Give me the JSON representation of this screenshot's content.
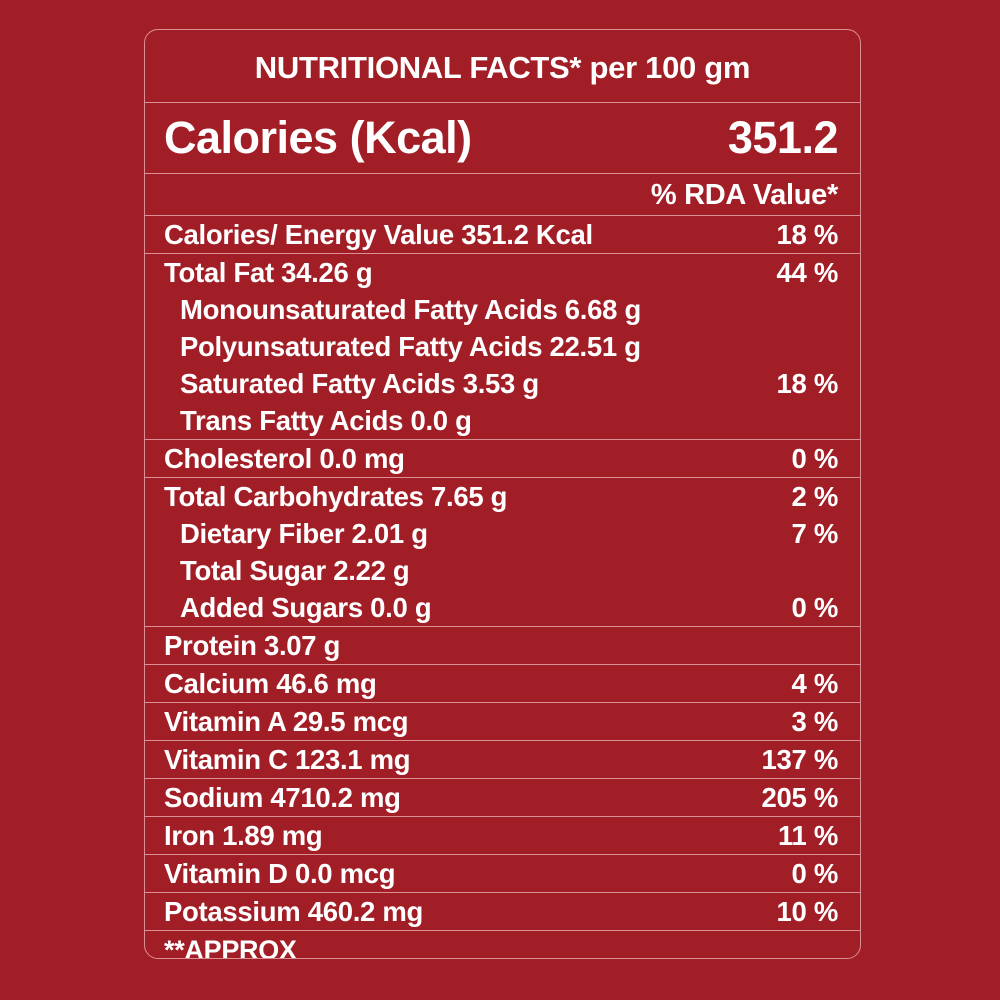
{
  "title": "NUTRITIONAL FACTS* per 100 gm",
  "calories_header": {
    "label": "Calories (Kcal)",
    "value": "351.2"
  },
  "rda_header": "% RDA Value*",
  "groups": [
    {
      "rows": [
        {
          "label": "Calories/ Energy Value 351.2 Kcal",
          "rda": "18 %",
          "sub": false
        }
      ]
    },
    {
      "rows": [
        {
          "label": "Total Fat 34.26 g",
          "rda": "44 %",
          "sub": false
        },
        {
          "label": "Monounsaturated Fatty Acids 6.68 g",
          "rda": "",
          "sub": true
        },
        {
          "label": "Polyunsaturated Fatty Acids 22.51 g",
          "rda": "",
          "sub": true
        },
        {
          "label": "Saturated Fatty Acids 3.53 g",
          "rda": "18 %",
          "sub": true
        },
        {
          "label": "Trans Fatty Acids 0.0 g",
          "rda": "",
          "sub": true
        }
      ]
    },
    {
      "rows": [
        {
          "label": "Cholesterol 0.0 mg",
          "rda": "0 %",
          "sub": false
        }
      ]
    },
    {
      "rows": [
        {
          "label": "Total Carbohydrates 7.65 g",
          "rda": "2 %",
          "sub": false
        },
        {
          "label": "Dietary Fiber 2.01 g",
          "rda": "7 %",
          "sub": true
        },
        {
          "label": "Total Sugar 2.22 g",
          "rda": "",
          "sub": true
        },
        {
          "label": "Added Sugars 0.0 g",
          "rda": "0 %",
          "sub": true
        }
      ]
    },
    {
      "rows": [
        {
          "label": "Protein 3.07 g",
          "rda": "",
          "sub": false
        }
      ]
    },
    {
      "rows": [
        {
          "label": "Calcium 46.6 mg",
          "rda": "4 %",
          "sub": false
        }
      ]
    },
    {
      "rows": [
        {
          "label": "Vitamin A 29.5 mcg",
          "rda": "3 %",
          "sub": false
        }
      ]
    },
    {
      "rows": [
        {
          "label": "Vitamin C 123.1 mg",
          "rda": "137 %",
          "sub": false
        }
      ]
    },
    {
      "rows": [
        {
          "label": "Sodium 4710.2 mg",
          "rda": "205 %",
          "sub": false
        }
      ]
    },
    {
      "rows": [
        {
          "label": "Iron 1.89 mg",
          "rda": "11 %",
          "sub": false
        }
      ]
    },
    {
      "rows": [
        {
          "label": "Vitamin D 0.0 mcg",
          "rda": "0 %",
          "sub": false
        }
      ]
    },
    {
      "rows": [
        {
          "label": "Potassium 460.2 mg",
          "rda": "10 %",
          "sub": false
        }
      ]
    }
  ],
  "footer": "**APPROX",
  "colors": {
    "background": "#a21e26",
    "text": "#ffffff",
    "rule": "#d98f93"
  }
}
